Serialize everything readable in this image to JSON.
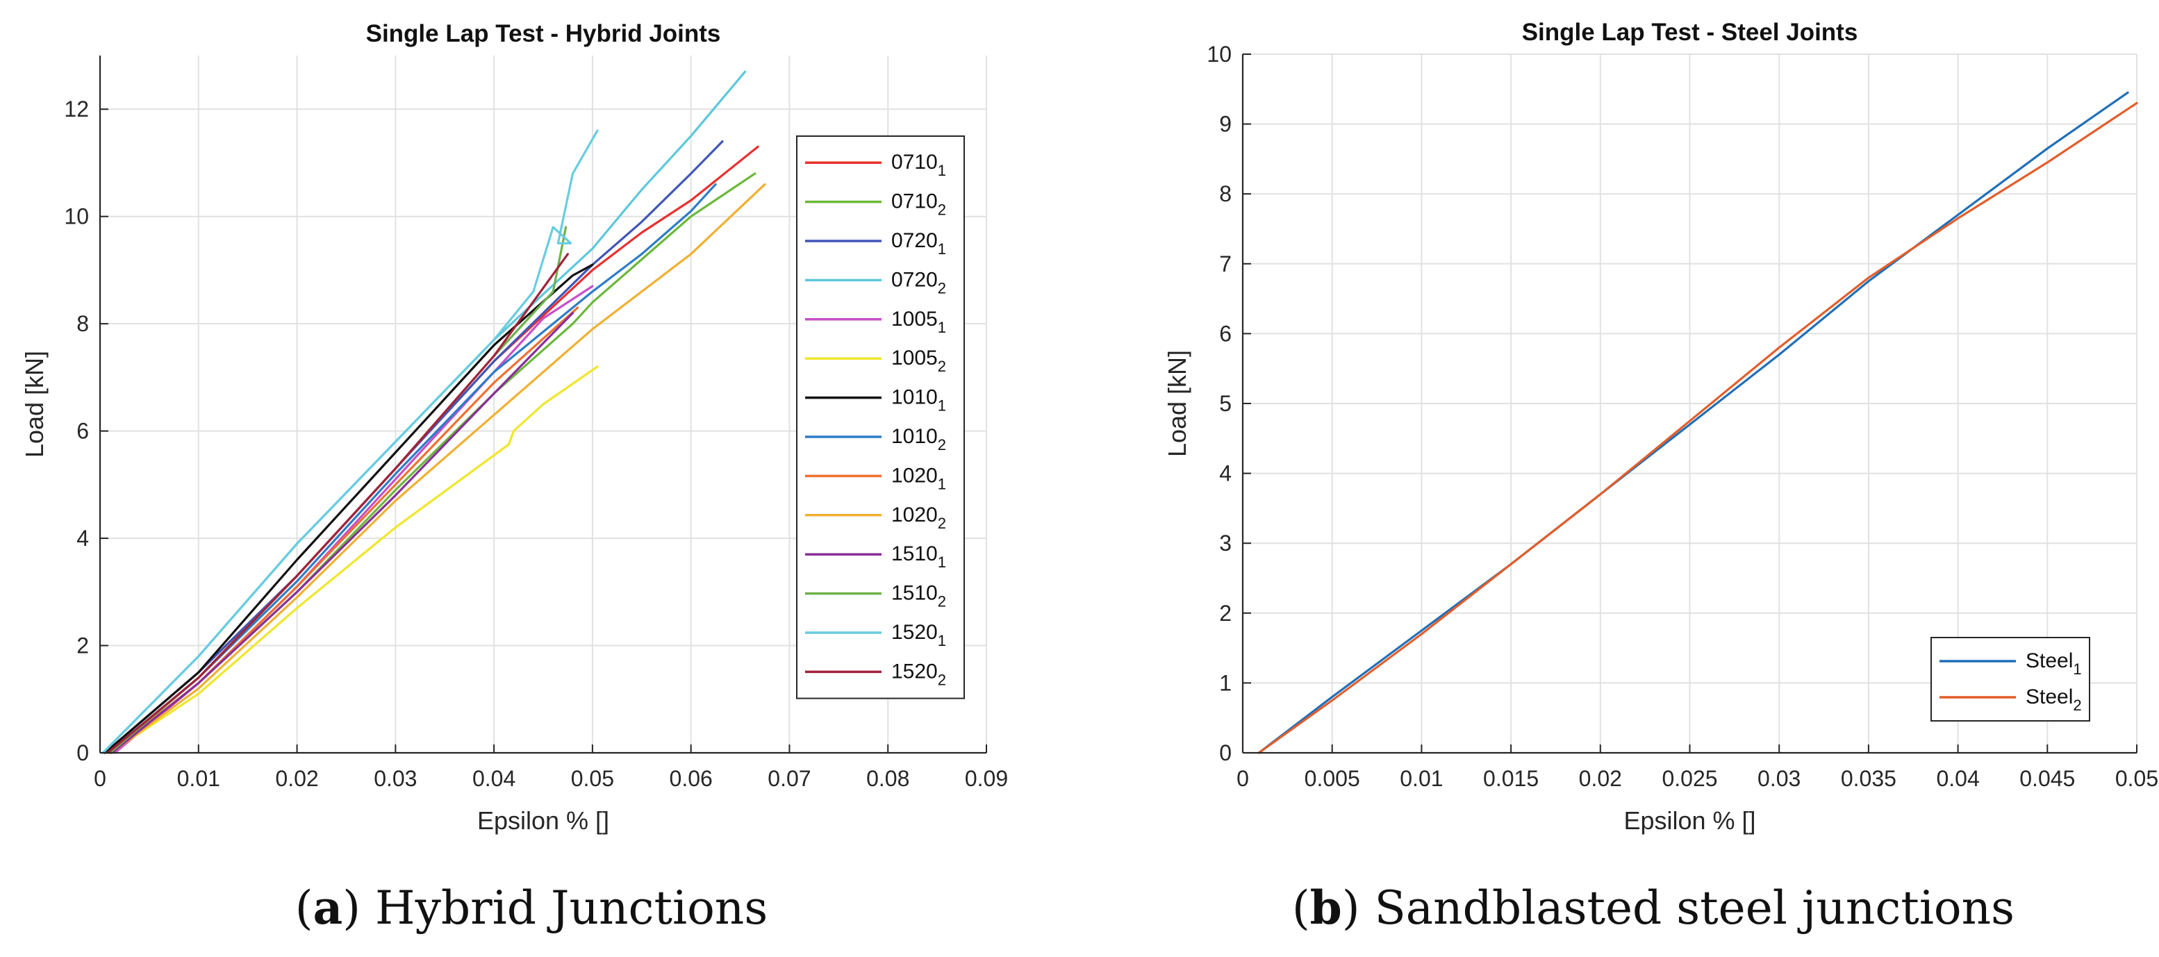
{
  "charts": [
    {
      "title": "Single Lap Test - Hybrid Joints",
      "xlabel": "Epsilon % []",
      "ylabel": "Load [kN]",
      "caption": {
        "letter": "a",
        "text": "Hybrid Junctions"
      }
    },
    {
      "title": "Single Lap Test - Steel Joints",
      "xlabel": "Epsilon % []",
      "ylabel": "Load [kN]",
      "caption": {
        "letter": "b",
        "text": "Sandblasted steel junctions"
      }
    }
  ],
  "chart_data": [
    {
      "type": "line",
      "title": "Single Lap Test - Hybrid Joints",
      "xlabel": "Epsilon % []",
      "ylabel": "Load [kN]",
      "xlim": [
        0,
        0.09
      ],
      "ylim": [
        0,
        13
      ],
      "xticks": [
        0,
        0.01,
        0.02,
        0.03,
        0.04,
        0.05,
        0.06,
        0.07,
        0.08,
        0.09
      ],
      "xtick_labels": [
        "0",
        "0.01",
        "0.02",
        "0.03",
        "0.04",
        "0.05",
        "0.06",
        "0.07",
        "0.08",
        "0.09"
      ],
      "yticks": [
        0,
        2,
        4,
        6,
        8,
        10,
        12
      ],
      "ytick_labels": [
        "0",
        "2",
        "4",
        "6",
        "8",
        "10",
        "12"
      ],
      "grid": true,
      "legend_position": "right",
      "series": [
        {
          "name": "0710",
          "sub": "1",
          "color": "#e8312f",
          "x": [
            0.0005,
            0.01,
            0.02,
            0.03,
            0.04,
            0.05,
            0.055,
            0.06,
            0.0668
          ],
          "y": [
            0,
            1.5,
            3.3,
            5.3,
            7.3,
            9.0,
            9.7,
            10.3,
            11.3
          ]
        },
        {
          "name": "0710",
          "sub": "2",
          "color": "#6ab839",
          "x": [
            0.001,
            0.01,
            0.02,
            0.03,
            0.04,
            0.048,
            0.05,
            0.055,
            0.06,
            0.0665
          ],
          "y": [
            0,
            1.3,
            3.0,
            4.9,
            6.7,
            8.0,
            8.4,
            9.2,
            10.0,
            10.8
          ]
        },
        {
          "name": "0720",
          "sub": "1",
          "color": "#4055b8",
          "x": [
            0.0005,
            0.01,
            0.02,
            0.03,
            0.04,
            0.05,
            0.055,
            0.06,
            0.0632
          ],
          "y": [
            0,
            1.5,
            3.3,
            5.3,
            7.3,
            9.1,
            9.9,
            10.8,
            11.4
          ]
        },
        {
          "name": "0720",
          "sub": "2",
          "color": "#5cc8dc",
          "x": [
            0.0003,
            0.01,
            0.02,
            0.03,
            0.04,
            0.05,
            0.055,
            0.06,
            0.0655
          ],
          "y": [
            0,
            1.8,
            3.9,
            5.8,
            7.7,
            9.4,
            10.5,
            11.5,
            12.7
          ]
        },
        {
          "name": "1005",
          "sub": "1",
          "color": "#c84fc8",
          "x": [
            0.0015,
            0.01,
            0.02,
            0.03,
            0.04,
            0.045,
            0.05
          ],
          "y": [
            0,
            1.3,
            3.1,
            5.1,
            7.1,
            8.1,
            8.7
          ]
        },
        {
          "name": "1005",
          "sub": "2",
          "color": "#f0e62c",
          "x": [
            0.001,
            0.01,
            0.02,
            0.03,
            0.0415,
            0.042,
            0.045,
            0.0505
          ],
          "y": [
            0,
            1.1,
            2.7,
            4.2,
            5.75,
            6.0,
            6.5,
            7.2
          ]
        },
        {
          "name": "1010",
          "sub": "1",
          "color": "#111111",
          "x": [
            0.0005,
            0.01,
            0.02,
            0.03,
            0.04,
            0.048,
            0.05
          ],
          "y": [
            0,
            1.5,
            3.6,
            5.6,
            7.6,
            8.9,
            9.1
          ]
        },
        {
          "name": "1010",
          "sub": "2",
          "color": "#2d7dc8",
          "x": [
            0.0008,
            0.01,
            0.02,
            0.03,
            0.04,
            0.05,
            0.055,
            0.06,
            0.0625
          ],
          "y": [
            0,
            1.4,
            3.2,
            5.2,
            7.1,
            8.6,
            9.3,
            10.1,
            10.6
          ]
        },
        {
          "name": "1020",
          "sub": "1",
          "color": "#f07030",
          "x": [
            0.001,
            0.01,
            0.02,
            0.03,
            0.04,
            0.0485
          ],
          "y": [
            0,
            1.3,
            3.1,
            5.0,
            6.9,
            8.3
          ]
        },
        {
          "name": "1020",
          "sub": "2",
          "color": "#f0b030",
          "x": [
            0.0012,
            0.01,
            0.02,
            0.03,
            0.04,
            0.05,
            0.06,
            0.0675
          ],
          "y": [
            0,
            1.2,
            2.9,
            4.7,
            6.3,
            7.9,
            9.3,
            10.6
          ]
        },
        {
          "name": "1510",
          "sub": "1",
          "color": "#8a2f9a",
          "x": [
            0.0012,
            0.01,
            0.02,
            0.03,
            0.04,
            0.048
          ],
          "y": [
            0,
            1.3,
            3.0,
            4.8,
            6.7,
            8.2
          ]
        },
        {
          "name": "1510",
          "sub": "2",
          "color": "#6db24a",
          "x": [
            0.001,
            0.01,
            0.02,
            0.03,
            0.04,
            0.046,
            0.0473
          ],
          "y": [
            0,
            1.4,
            3.3,
            5.3,
            7.4,
            8.6,
            9.8
          ]
        },
        {
          "name": "1520",
          "sub": "1",
          "color": "#68cce0",
          "x": [
            0.0003,
            0.01,
            0.02,
            0.03,
            0.04,
            0.044,
            0.046,
            0.0478,
            0.0465,
            0.048,
            0.0505
          ],
          "y": [
            0,
            1.8,
            3.9,
            5.8,
            7.7,
            8.6,
            9.8,
            9.5,
            9.5,
            10.8,
            11.6
          ]
        },
        {
          "name": "1520",
          "sub": "2",
          "color": "#a3223a",
          "x": [
            0.0008,
            0.01,
            0.02,
            0.03,
            0.04,
            0.0475
          ],
          "y": [
            0,
            1.4,
            3.3,
            5.3,
            7.4,
            9.3
          ]
        }
      ]
    },
    {
      "type": "line",
      "title": "Single Lap Test - Steel Joints",
      "xlabel": "Epsilon % []",
      "ylabel": "Load [kN]",
      "xlim": [
        0,
        0.05
      ],
      "ylim": [
        0,
        10
      ],
      "xticks": [
        0,
        0.005,
        0.01,
        0.015,
        0.02,
        0.025,
        0.03,
        0.035,
        0.04,
        0.045,
        0.05
      ],
      "xtick_labels": [
        "0",
        "0.005",
        "0.01",
        "0.015",
        "0.02",
        "0.025",
        "0.03",
        "0.035",
        "0.04",
        "0.045",
        "0.05"
      ],
      "yticks": [
        0,
        1,
        2,
        3,
        4,
        5,
        6,
        7,
        8,
        9,
        10
      ],
      "ytick_labels": [
        "0",
        "1",
        "2",
        "3",
        "4",
        "5",
        "6",
        "7",
        "8",
        "9",
        "10"
      ],
      "grid": true,
      "legend_position": "bottom-right",
      "series": [
        {
          "name": "Steel",
          "sub": "1",
          "color": "#1f6fb8",
          "x": [
            0.0009,
            0.005,
            0.01,
            0.015,
            0.02,
            0.025,
            0.03,
            0.035,
            0.04,
            0.045,
            0.0495
          ],
          "y": [
            0,
            0.8,
            1.75,
            2.7,
            3.7,
            4.7,
            5.7,
            6.75,
            7.7,
            8.65,
            9.45
          ]
        },
        {
          "name": "Steel",
          "sub": "2",
          "color": "#e35d2a",
          "x": [
            0.0009,
            0.005,
            0.01,
            0.015,
            0.02,
            0.025,
            0.03,
            0.035,
            0.04,
            0.045,
            0.05
          ],
          "y": [
            0,
            0.75,
            1.7,
            2.7,
            3.7,
            4.75,
            5.8,
            6.8,
            7.65,
            8.45,
            9.3
          ]
        }
      ]
    }
  ]
}
